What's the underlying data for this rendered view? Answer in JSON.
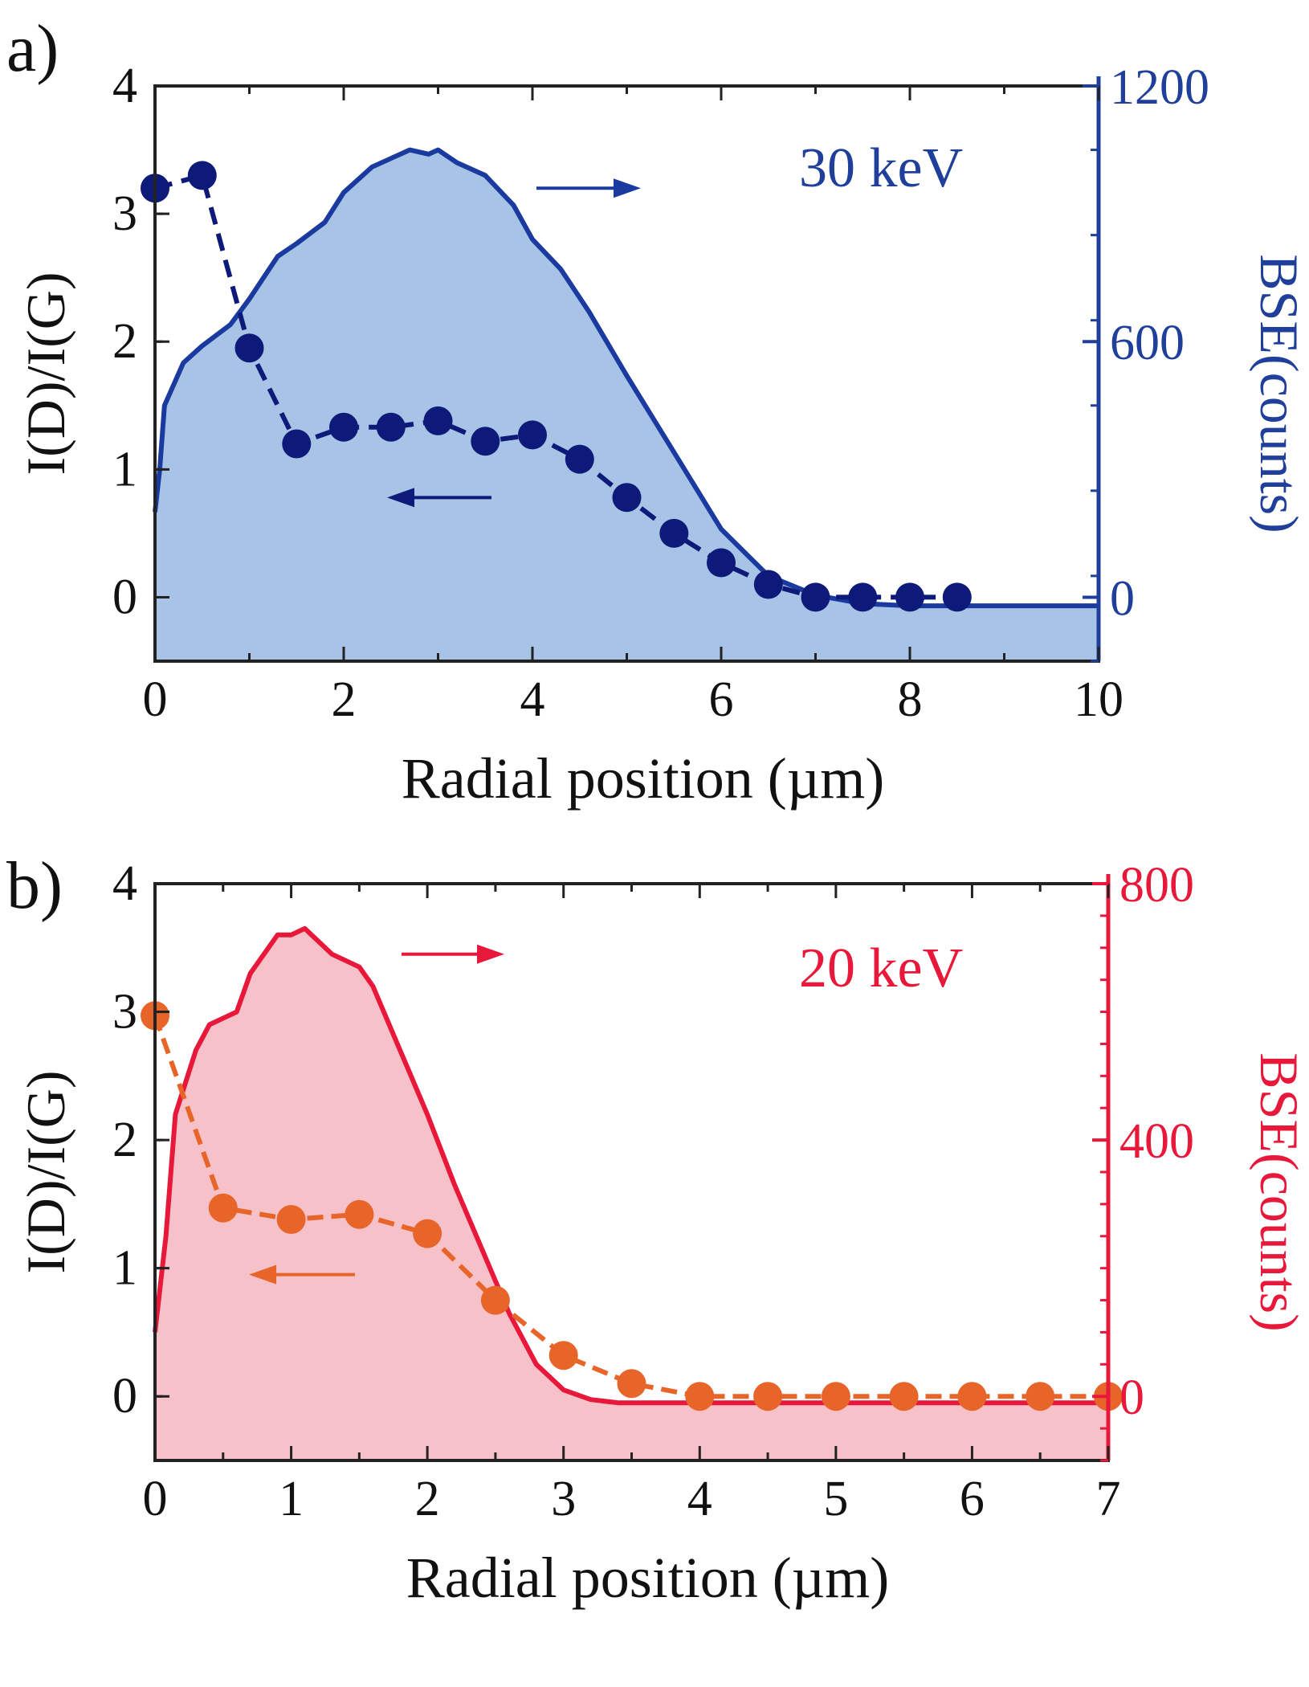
{
  "figure": {
    "panels": [
      "a)",
      "b)"
    ]
  },
  "chart_data": [
    {
      "type": "line",
      "panel_label": "a)",
      "annotation": "30 keV",
      "xlabel": "Radial position (µm)",
      "ylabel_left": "I(D)/I(G)",
      "ylabel_right": "BSE(counts)",
      "xlim": [
        0,
        10
      ],
      "ylim_left": [
        -0.5,
        4
      ],
      "ylim_right": [
        -150,
        1200
      ],
      "xticks": [
        "0",
        "2",
        "4",
        "6",
        "8",
        "10"
      ],
      "yticks_left": [
        "0",
        "1",
        "2",
        "3",
        "4"
      ],
      "yticks_right": [
        "0",
        "600",
        "1200"
      ],
      "colors": {
        "ratio": "#0d1a7a",
        "bse_line": "#1a3aa0",
        "bse_fill": "#a7c4e6",
        "annotation": "#1f3f9a",
        "right_axis": "#1f3f9a"
      },
      "series": [
        {
          "name": "I(D)/I(G)",
          "axis": "left",
          "x": [
            0,
            0.5,
            1,
            1.5,
            2,
            2.5,
            3,
            3.5,
            4,
            4.5,
            5,
            5.5,
            6,
            6.5,
            7,
            7.5,
            8,
            8.5
          ],
          "values": [
            3.2,
            3.3,
            1.95,
            1.2,
            1.33,
            1.33,
            1.38,
            1.22,
            1.27,
            1.08,
            0.78,
            0.5,
            0.27,
            0.1,
            0.0,
            0.0,
            0.0,
            0.0
          ]
        },
        {
          "name": "BSE",
          "axis": "right",
          "x": [
            0,
            0.05,
            0.1,
            0.3,
            0.5,
            0.8,
            1.0,
            1.3,
            1.5,
            1.8,
            2.0,
            2.3,
            2.5,
            2.7,
            2.9,
            3.0,
            3.2,
            3.5,
            3.8,
            4.0,
            4.3,
            4.6,
            5.0,
            5.5,
            6.0,
            6.5,
            7.0,
            7.5,
            8.0,
            8.5,
            9.0,
            10.0
          ],
          "values": [
            200,
            300,
            450,
            550,
            590,
            640,
            700,
            800,
            830,
            880,
            950,
            1010,
            1030,
            1050,
            1040,
            1050,
            1020,
            990,
            920,
            840,
            770,
            670,
            520,
            340,
            160,
            50,
            5,
            -15,
            -20,
            -20,
            -20,
            -20
          ]
        }
      ]
    },
    {
      "type": "line",
      "panel_label": "b)",
      "annotation": "20 keV",
      "xlabel": "Radial position (µm)",
      "ylabel_left": "I(D)/I(G)",
      "ylabel_right": "BSE(counts)",
      "xlim": [
        0,
        7
      ],
      "ylim_left": [
        -0.5,
        4
      ],
      "ylim_right": [
        -100,
        800
      ],
      "xticks": [
        "0",
        "1",
        "2",
        "3",
        "4",
        "5",
        "6",
        "7"
      ],
      "yticks_left": [
        "0",
        "1",
        "2",
        "3",
        "4"
      ],
      "yticks_right": [
        "0",
        "400",
        "800"
      ],
      "colors": {
        "ratio": "#e8652a",
        "bse_line": "#e8183a",
        "bse_fill": "#f7c1c9",
        "annotation": "#e8183a",
        "right_axis": "#e8183a"
      },
      "series": [
        {
          "name": "I(D)/I(G)",
          "axis": "left",
          "x": [
            0,
            0.5,
            1,
            1.5,
            2,
            2.5,
            3,
            3.5,
            4,
            4.5,
            5,
            5.5,
            6,
            6.5,
            7
          ],
          "values": [
            2.97,
            1.47,
            1.38,
            1.42,
            1.27,
            0.75,
            0.32,
            0.1,
            0.0,
            0.0,
            0.0,
            0.0,
            0.0,
            0.0,
            0.0
          ]
        },
        {
          "name": "BSE",
          "axis": "right",
          "x": [
            0,
            0.08,
            0.15,
            0.3,
            0.4,
            0.6,
            0.7,
            0.8,
            0.9,
            1.0,
            1.1,
            1.2,
            1.3,
            1.5,
            1.6,
            1.8,
            2.0,
            2.2,
            2.4,
            2.6,
            2.8,
            3.0,
            3.2,
            3.4,
            3.6,
            4.0,
            5.0,
            6.0,
            7.0
          ],
          "values": [
            100,
            250,
            440,
            540,
            580,
            600,
            660,
            690,
            720,
            720,
            730,
            710,
            690,
            670,
            640,
            540,
            440,
            330,
            230,
            130,
            50,
            10,
            -5,
            -10,
            -10,
            -10,
            -10,
            -10,
            -10
          ]
        }
      ]
    }
  ]
}
